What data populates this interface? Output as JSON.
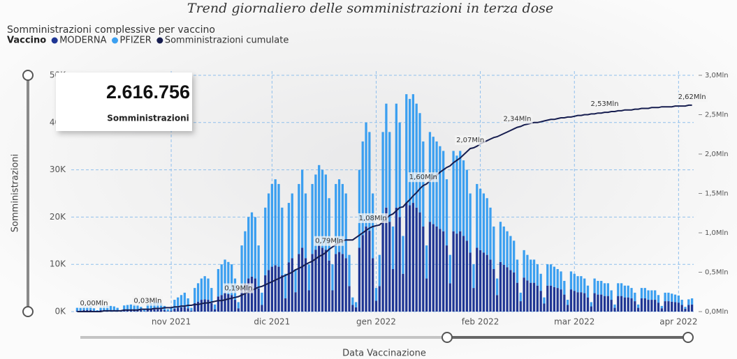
{
  "page": {
    "title": "Trend giornaliero delle somministrazioni in terza dose"
  },
  "card": {
    "value": "2.616.756",
    "label": "Somministrazioni"
  },
  "chart_data": {
    "type": "bar",
    "stacked": true,
    "title": "Somministrazioni complessive per vaccino",
    "legend_title": "Vaccino",
    "y_label": "Somministrazioni",
    "x_label": "Data Vaccinazione",
    "grid": true,
    "categories": [
      null,
      null,
      null,
      null,
      null,
      null,
      null,
      null,
      null,
      null,
      null,
      null,
      null,
      null,
      null,
      null,
      null,
      null,
      null,
      null,
      null,
      null,
      null,
      null,
      null,
      null,
      null,
      null,
      "nov 2021",
      null,
      null,
      null,
      null,
      null,
      null,
      null,
      null,
      null,
      null,
      null,
      null,
      null,
      null,
      null,
      null,
      null,
      null,
      null,
      null,
      null,
      null,
      null,
      null,
      null,
      null,
      null,
      null,
      null,
      "dic 2021",
      null,
      null,
      null,
      null,
      null,
      null,
      null,
      null,
      null,
      null,
      null,
      null,
      null,
      null,
      null,
      null,
      null,
      null,
      null,
      null,
      null,
      null,
      null,
      null,
      null,
      null,
      null,
      null,
      null,
      null,
      "gen 2022",
      null,
      null,
      null,
      null,
      null,
      null,
      null,
      null,
      null,
      null,
      null,
      null,
      null,
      null,
      null,
      null,
      null,
      null,
      null,
      null,
      null,
      null,
      null,
      null,
      null,
      null,
      null,
      null,
      null,
      null,
      "feb 2022",
      null,
      null,
      null,
      null,
      null,
      null,
      null,
      null,
      null,
      null,
      null,
      null,
      null,
      null,
      null,
      null,
      null,
      null,
      null,
      null,
      null,
      null,
      null,
      null,
      null,
      null,
      null,
      "mar 2022",
      null,
      null,
      null,
      null,
      null,
      null,
      null,
      null,
      null,
      null,
      null,
      null,
      null,
      null,
      null,
      null,
      null,
      null,
      null,
      null,
      null,
      null,
      null,
      null,
      null,
      null,
      null,
      null,
      null,
      null,
      "apr 2022",
      null,
      null,
      null,
      null
    ],
    "ylim": [
      0,
      50
    ],
    "yticks": [
      {
        "value": 0,
        "label": "0K"
      },
      {
        "value": 10,
        "label": "10K"
      },
      {
        "value": 20,
        "label": "20K"
      },
      {
        "value": 30,
        "label": "30K"
      },
      {
        "value": 40,
        "label": "40K"
      },
      {
        "value": 50,
        "label": "50K"
      }
    ],
    "y2lim": [
      0,
      3
    ],
    "y2ticks": [
      {
        "value": 0,
        "label": "0,0Mln"
      },
      {
        "value": 0.5,
        "label": "0,5Mln"
      },
      {
        "value": 1,
        "label": "1,0Mln"
      },
      {
        "value": 1.5,
        "label": "1,5Mln"
      },
      {
        "value": 2,
        "label": "2,0Mln"
      },
      {
        "value": 2.5,
        "label": "2,5Mln"
      },
      {
        "value": 3,
        "label": "3,0Mln"
      }
    ],
    "series": [
      {
        "name": "MODERNA",
        "color": "#1f3694",
        "values": [
          0.2,
          0.2,
          0.3,
          0.3,
          0.3,
          0.2,
          0.1,
          0.3,
          0.3,
          0.3,
          0.3,
          0.3,
          0.2,
          0.1,
          0.3,
          0.4,
          0.4,
          0.4,
          0.4,
          0.3,
          0.1,
          0.4,
          0.5,
          0.5,
          0.5,
          0.5,
          0.3,
          0.1,
          0.2,
          0.6,
          0.8,
          0.9,
          1.0,
          0.7,
          0.2,
          1.8,
          2.1,
          2.5,
          2.6,
          2.5,
          1.8,
          0.5,
          3.2,
          3.5,
          3.9,
          3.7,
          3.5,
          2.5,
          0.7,
          4.9,
          6.0,
          7.0,
          7.4,
          7.0,
          4.9,
          1.4,
          7.7,
          8.8,
          9.5,
          9.8,
          9.5,
          7.7,
          2.8,
          10.4,
          11.3,
          4.1,
          12.2,
          13.5,
          11.3,
          4.5,
          12.2,
          13.1,
          14.0,
          13.5,
          13.1,
          10.8,
          4.5,
          12.2,
          12.6,
          12.2,
          11.3,
          5.4,
          1.4,
          0.9,
          13.5,
          16.2,
          18.0,
          17.1,
          11.3,
          2.3,
          5.4,
          19,
          22,
          19,
          9,
          22,
          20,
          8,
          23,
          22.5,
          23,
          22,
          21,
          18,
          7,
          19,
          18.5,
          18,
          17.5,
          17,
          14,
          6,
          17,
          16.5,
          17,
          16,
          15,
          12.5,
          5,
          13.5,
          13,
          12.5,
          12,
          11,
          9,
          3.5,
          10.5,
          9.9,
          9.4,
          8.8,
          8.3,
          6.1,
          2.2,
          7.2,
          6.6,
          6.1,
          6.1,
          5.5,
          4.4,
          1.7,
          5.5,
          5.5,
          5.2,
          5.0,
          4.7,
          3.6,
          1.4,
          4.7,
          4.4,
          4.1,
          4.1,
          3.9,
          3.0,
          1.1,
          3.9,
          3.6,
          3.6,
          3.3,
          3.3,
          2.5,
          0.8,
          3.3,
          3.3,
          3.0,
          3.0,
          2.8,
          2.2,
          0.8,
          2.8,
          2.8,
          2.5,
          2.5,
          2.5,
          1.9,
          0.7,
          2.2,
          2.2,
          2.1,
          2.0,
          1.9,
          1.4,
          0.6,
          1.4,
          1.5
        ]
      },
      {
        "name": "PFIZER",
        "color": "#3b9ff0",
        "values": [
          0.6,
          0.7,
          0.7,
          0.7,
          0.8,
          0.5,
          0.2,
          0.7,
          0.8,
          0.9,
          0.9,
          0.8,
          0.6,
          0.2,
          1.0,
          1.0,
          1.1,
          1.1,
          1.0,
          0.7,
          0.3,
          1.2,
          1.3,
          1.4,
          1.5,
          1.3,
          0.9,
          0.4,
          0.6,
          1.9,
          2.2,
          2.6,
          3.0,
          2.1,
          0.6,
          3.2,
          3.9,
          4.5,
          4.9,
          4.5,
          3.2,
          1.0,
          5.8,
          6.5,
          7.1,
          6.8,
          6.5,
          4.5,
          1.3,
          9.1,
          11.0,
          13.0,
          13.6,
          13.0,
          9.1,
          2.6,
          14.3,
          16.2,
          17.5,
          18.2,
          17.5,
          14.3,
          5.2,
          12.6,
          13.7,
          4.9,
          14.8,
          16.5,
          13.7,
          5.5,
          14.8,
          15.9,
          17.0,
          16.5,
          15.9,
          13.2,
          5.5,
          14.8,
          15.4,
          14.8,
          13.7,
          6.6,
          1.6,
          1.1,
          16.5,
          19.8,
          22.0,
          20.9,
          13.7,
          2.7,
          6.6,
          19,
          22,
          19,
          9,
          22,
          20,
          8,
          23,
          22.5,
          23,
          22,
          21,
          18,
          7,
          19,
          18.5,
          18,
          17.5,
          17,
          14,
          6,
          17,
          16.5,
          17,
          16,
          15,
          12.5,
          5,
          13.5,
          13,
          12.5,
          12,
          11,
          9,
          3.5,
          8.5,
          8.1,
          7.6,
          7.2,
          6.7,
          4.9,
          1.8,
          5.8,
          5.4,
          4.9,
          4.9,
          4.5,
          3.6,
          1.3,
          4.5,
          4.5,
          4.3,
          4.0,
          3.8,
          2.9,
          1.1,
          3.8,
          3.6,
          3.4,
          3.4,
          3.1,
          2.5,
          0.9,
          3.1,
          2.9,
          2.9,
          2.7,
          2.7,
          2.0,
          0.7,
          2.7,
          2.7,
          2.5,
          2.5,
          2.2,
          1.8,
          0.7,
          2.2,
          2.2,
          2.0,
          2.0,
          2.0,
          1.6,
          0.5,
          1.8,
          1.8,
          1.7,
          1.6,
          1.5,
          1.1,
          0.4,
          1.2,
          1.3
        ]
      },
      {
        "name": "Somministrazioni cumulate",
        "color": "#161d4f",
        "type": "line",
        "axis": "y2",
        "values": [
          0,
          0,
          0,
          0,
          0,
          0,
          0,
          0,
          0.01,
          0.01,
          0.01,
          0.01,
          0.01,
          0.01,
          0.02,
          0.02,
          0.02,
          0.02,
          0.02,
          0.03,
          0.03,
          0.03,
          0.03,
          0.04,
          0.04,
          0.04,
          0.05,
          0.05,
          0.05,
          0.06,
          0.06,
          0.07,
          0.07,
          0.08,
          0.08,
          0.09,
          0.09,
          0.1,
          0.11,
          0.11,
          0.12,
          0.13,
          0.14,
          0.14,
          0.15,
          0.16,
          0.17,
          0.18,
          0.19,
          0.21,
          0.23,
          0.25,
          0.27,
          0.29,
          0.31,
          0.32,
          0.34,
          0.36,
          0.38,
          0.4,
          0.42,
          0.44,
          0.46,
          0.48,
          0.5,
          0.53,
          0.55,
          0.57,
          0.6,
          0.62,
          0.64,
          0.67,
          0.7,
          0.72,
          0.75,
          0.79,
          0.82,
          0.85,
          0.88,
          0.9,
          0.91,
          0.91,
          0.91,
          0.94,
          0.97,
          1.0,
          1.03,
          1.06,
          1.08,
          1.09,
          1.1,
          1.14,
          1.18,
          1.22,
          1.24,
          1.28,
          1.32,
          1.33,
          1.38,
          1.42,
          1.47,
          1.51,
          1.56,
          1.6,
          1.62,
          1.66,
          1.7,
          1.73,
          1.77,
          1.8,
          1.83,
          1.85,
          1.89,
          1.92,
          1.95,
          1.99,
          2.03,
          2.07,
          2.08,
          2.1,
          2.13,
          2.15,
          2.17,
          2.19,
          2.21,
          2.22,
          2.24,
          2.26,
          2.28,
          2.3,
          2.32,
          2.34,
          2.35,
          2.37,
          2.38,
          2.39,
          2.4,
          2.4,
          2.41,
          2.42,
          2.43,
          2.44,
          2.44,
          2.45,
          2.46,
          2.46,
          2.47,
          2.47,
          2.48,
          2.49,
          2.49,
          2.5,
          2.5,
          2.51,
          2.51,
          2.52,
          2.52,
          2.53,
          2.53,
          2.54,
          2.54,
          2.55,
          2.55,
          2.56,
          2.56,
          2.56,
          2.57,
          2.57,
          2.58,
          2.58,
          2.58,
          2.59,
          2.59,
          2.59,
          2.6,
          2.6,
          2.6,
          2.6,
          2.61,
          2.61,
          2.61,
          2.61,
          2.62,
          2.62
        ],
        "value_labels": [
          null,
          null,
          null,
          null,
          null,
          "0,00Mln",
          null,
          null,
          null,
          null,
          null,
          null,
          null,
          null,
          null,
          null,
          null,
          null,
          null,
          null,
          null,
          "0,03Mln",
          null,
          null,
          null,
          null,
          null,
          null,
          null,
          null,
          null,
          null,
          null,
          null,
          null,
          null,
          null,
          null,
          null,
          null,
          null,
          null,
          null,
          null,
          null,
          null,
          null,
          null,
          "0,19Mln",
          null,
          null,
          null,
          null,
          null,
          null,
          null,
          null,
          null,
          null,
          null,
          null,
          null,
          null,
          null,
          null,
          null,
          null,
          null,
          null,
          null,
          null,
          null,
          null,
          null,
          null,
          "0,79Mln",
          null,
          null,
          null,
          null,
          null,
          null,
          null,
          null,
          null,
          null,
          null,
          null,
          "1,08Mln",
          null,
          null,
          null,
          null,
          null,
          null,
          null,
          null,
          null,
          null,
          null,
          null,
          null,
          null,
          "1,60Mln",
          null,
          null,
          null,
          null,
          null,
          null,
          null,
          null,
          null,
          null,
          null,
          null,
          null,
          "2,07Mln",
          null,
          null,
          null,
          null,
          null,
          null,
          null,
          null,
          null,
          null,
          null,
          null,
          null,
          "2,34Mln",
          null,
          null,
          null,
          null,
          null,
          null,
          null,
          null,
          null,
          null,
          null,
          null,
          null,
          null,
          null,
          null,
          null,
          null,
          null,
          null,
          null,
          null,
          null,
          null,
          null,
          "2,53Mln",
          null,
          null,
          null,
          null,
          null,
          null,
          null,
          null,
          null,
          null,
          null,
          null,
          null,
          null,
          null,
          null,
          null,
          null,
          null,
          null,
          null,
          null,
          null,
          null,
          null,
          "2,62Mln"
        ]
      }
    ]
  }
}
